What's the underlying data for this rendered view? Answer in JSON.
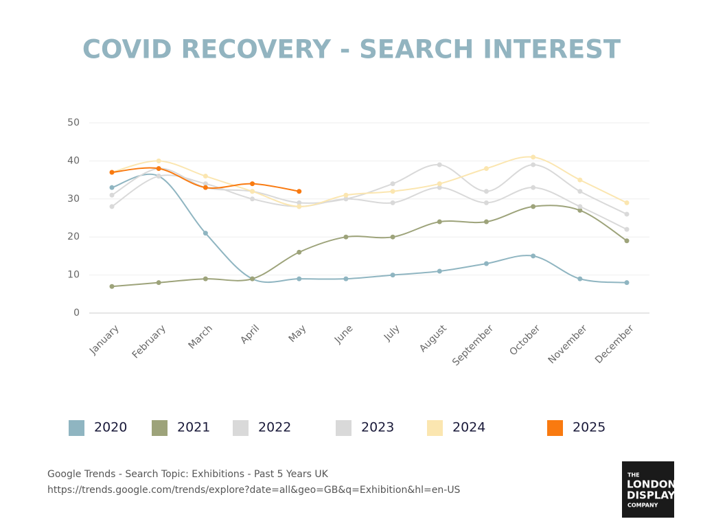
{
  "chart_data": {
    "type": "line",
    "title": "COVID RECOVERY - SEARCH INTEREST",
    "categories": [
      "January",
      "February",
      "March",
      "April",
      "May",
      "June",
      "July",
      "August",
      "September",
      "October",
      "November",
      "December"
    ],
    "series": [
      {
        "name": "2020",
        "color": "#8fb5c1",
        "values": [
          33,
          36,
          21,
          9,
          9,
          9,
          10,
          11,
          13,
          15,
          9,
          8
        ]
      },
      {
        "name": "2021",
        "color": "#9da37a",
        "values": [
          7,
          8,
          9,
          9,
          16,
          20,
          20,
          24,
          24,
          28,
          27,
          19
        ]
      },
      {
        "name": "2022",
        "color": "#d9d9d9",
        "values": [
          28,
          36,
          34,
          30,
          28,
          30,
          29,
          33,
          29,
          33,
          28,
          22
        ]
      },
      {
        "name": "2023",
        "color": "#d9d9d9",
        "values": [
          31,
          38,
          33,
          32,
          29,
          30,
          34,
          39,
          32,
          39,
          32,
          26
        ]
      },
      {
        "name": "2024",
        "color": "#fbe6b0",
        "values": [
          37,
          40,
          36,
          32,
          28,
          31,
          32,
          34,
          38,
          41,
          35,
          29
        ]
      },
      {
        "name": "2025",
        "color": "#f97a10",
        "values": [
          37,
          38,
          33,
          34,
          32,
          null,
          null,
          null,
          null,
          null,
          null,
          null
        ]
      }
    ],
    "ylim": [
      0,
      50
    ],
    "yticks": [
      0,
      10,
      20,
      30,
      40,
      50
    ],
    "grid": true,
    "source": [
      "Google Trends - Search Topic: Exhibitions - Past 5 Years UK",
      "https://trends.google.com/trends/explore?date=all&geo=GB&q=Exhibition&hl=en-US"
    ],
    "logo": [
      "THE",
      "LONDON",
      "DISPLAY",
      "COMPANY"
    ]
  }
}
